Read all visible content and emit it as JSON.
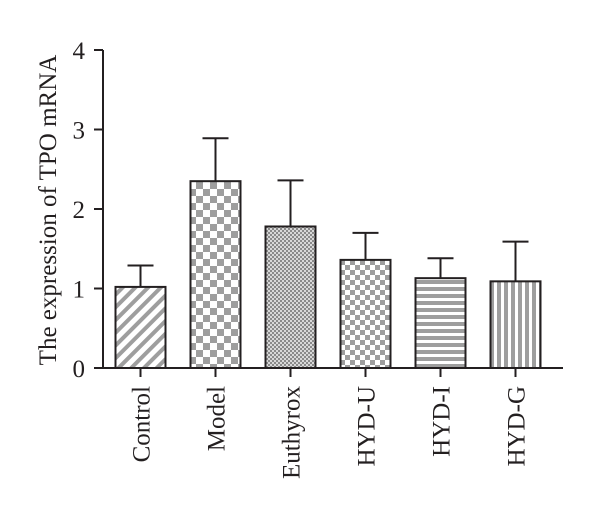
{
  "chart_data": {
    "type": "bar",
    "title": "",
    "xlabel": "",
    "ylabel": "The expression of TPO mRNA",
    "ylim": [
      0,
      4
    ],
    "yticks": [
      0,
      1,
      2,
      3,
      4
    ],
    "grid": false,
    "legend": "none",
    "categories": [
      "Control",
      "Model",
      "Euthyrox",
      "HYD-U",
      "HYD-I",
      "HYD-G"
    ],
    "values": [
      1.02,
      2.35,
      1.78,
      1.36,
      1.13,
      1.09
    ],
    "error_upper": [
      0.27,
      0.54,
      0.58,
      0.34,
      0.25,
      0.5
    ],
    "bar_patterns": [
      "diagonal-stripes",
      "large-checker",
      "fine-dots",
      "small-checker",
      "horizontal-stripes",
      "vertical-stripes"
    ],
    "colors": {
      "ink": "#231f20",
      "pattern_fill": "#9e9e9e",
      "background": "#ffffff"
    }
  }
}
